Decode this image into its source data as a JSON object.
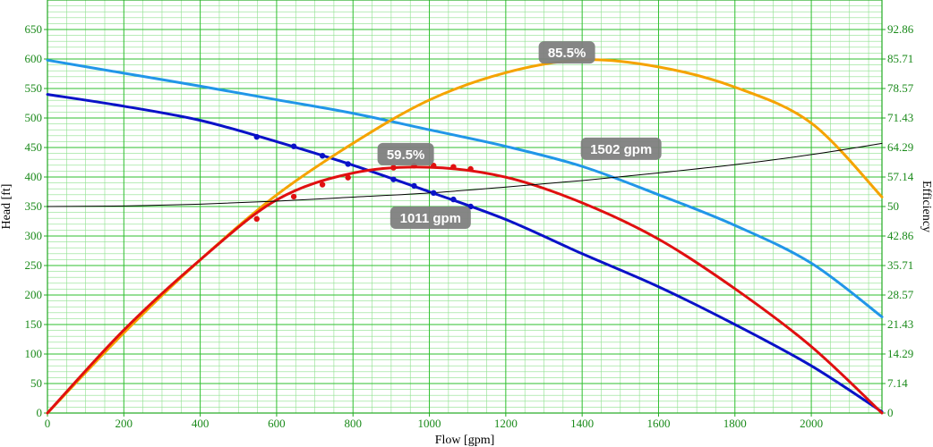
{
  "chart_data": {
    "type": "line",
    "xlabel": "Flow [gpm]",
    "ylabel_left": "Head [ft]",
    "ylabel_right": "Efficiency",
    "xlim": [
      0,
      2185
    ],
    "ylim_left": [
      0,
      700
    ],
    "ylim_right": [
      0,
      100
    ],
    "x_ticks": [
      "0",
      "200",
      "400",
      "600",
      "800",
      "1000",
      "1200",
      "1400",
      "1600",
      "1800",
      "2000"
    ],
    "y_left_ticks": [
      "0",
      "50",
      "100",
      "150",
      "200",
      "250",
      "300",
      "350",
      "400",
      "450",
      "500",
      "550",
      "600",
      "650"
    ],
    "y_right_ticks": [
      "0",
      "7.14",
      "14.29",
      "21.43",
      "28.57",
      "35.71",
      "42.86",
      "50",
      "57.14",
      "64.29",
      "71.43",
      "78.57",
      "85.71",
      "92.86"
    ],
    "grid": true,
    "series": [
      {
        "axis": "left",
        "color": "#2196e8",
        "x": [
          0,
          200,
          400,
          600,
          800,
          1000,
          1200,
          1400,
          1600,
          1800,
          2000,
          2185
        ],
        "y": [
          598,
          576,
          554,
          531,
          508,
          480,
          452,
          418,
          370,
          318,
          254,
          163
        ]
      },
      {
        "axis": "left",
        "color": "#0a12c8",
        "x": [
          0,
          200,
          400,
          600,
          800,
          1000,
          1200,
          1400,
          1600,
          1800,
          2000,
          2185
        ],
        "y": [
          540,
          520,
          496,
          460,
          420,
          375,
          328,
          270,
          214,
          150,
          80,
          2
        ]
      },
      {
        "axis": "right",
        "color": "#f5a300",
        "x": [
          0,
          200,
          400,
          600,
          800,
          1000,
          1200,
          1400,
          1600,
          1800,
          2000,
          2185
        ],
        "y": [
          0,
          19.4,
          37.1,
          52.8,
          65.3,
          75.8,
          82.4,
          85.5,
          83.8,
          78.9,
          70.2,
          52.3
        ]
      },
      {
        "axis": "right",
        "color": "#e01010",
        "x": [
          0,
          200,
          400,
          600,
          800,
          1000,
          1200,
          1400,
          1600,
          1800,
          2000,
          2185
        ],
        "y": [
          0,
          20.1,
          37.1,
          51.6,
          58.1,
          59.5,
          57.1,
          50.9,
          42.1,
          30.1,
          16.1,
          0
        ]
      },
      {
        "axis": "left",
        "color": "#000000",
        "x": [
          0,
          200,
          400,
          600,
          800,
          1000,
          1200,
          1400,
          1600,
          1800,
          2000,
          2185
        ],
        "y": [
          350,
          351,
          354,
          359,
          366,
          373,
          383,
          394,
          407,
          421,
          438,
          457
        ]
      }
    ],
    "markers": [
      {
        "axis": "left",
        "color": "#0a12c8",
        "x": [
          548,
          645,
          720,
          787,
          906,
          960,
          1011,
          1063,
          1108
        ],
        "y": [
          468,
          452,
          436,
          422,
          396,
          385,
          373,
          362,
          350
        ]
      },
      {
        "axis": "right",
        "color": "#e01010",
        "x": [
          548,
          645,
          720,
          787,
          906,
          960,
          1011,
          1063,
          1108
        ],
        "y": [
          47.0,
          52.4,
          55.3,
          57.0,
          59.4,
          59.9,
          59.9,
          59.6,
          59.1
        ]
      }
    ],
    "annotations": [
      {
        "text": "85.5%",
        "axis": "right",
        "x": 1360,
        "y": 87.3
      },
      {
        "text": "59.5%",
        "axis": "right",
        "x": 938,
        "y": 62.7
      },
      {
        "text": "1502 gpm",
        "axis": "left",
        "x": 1502,
        "y": 448
      },
      {
        "text": "1011 gpm",
        "axis": "left",
        "x": 1003,
        "y": 331
      }
    ]
  }
}
